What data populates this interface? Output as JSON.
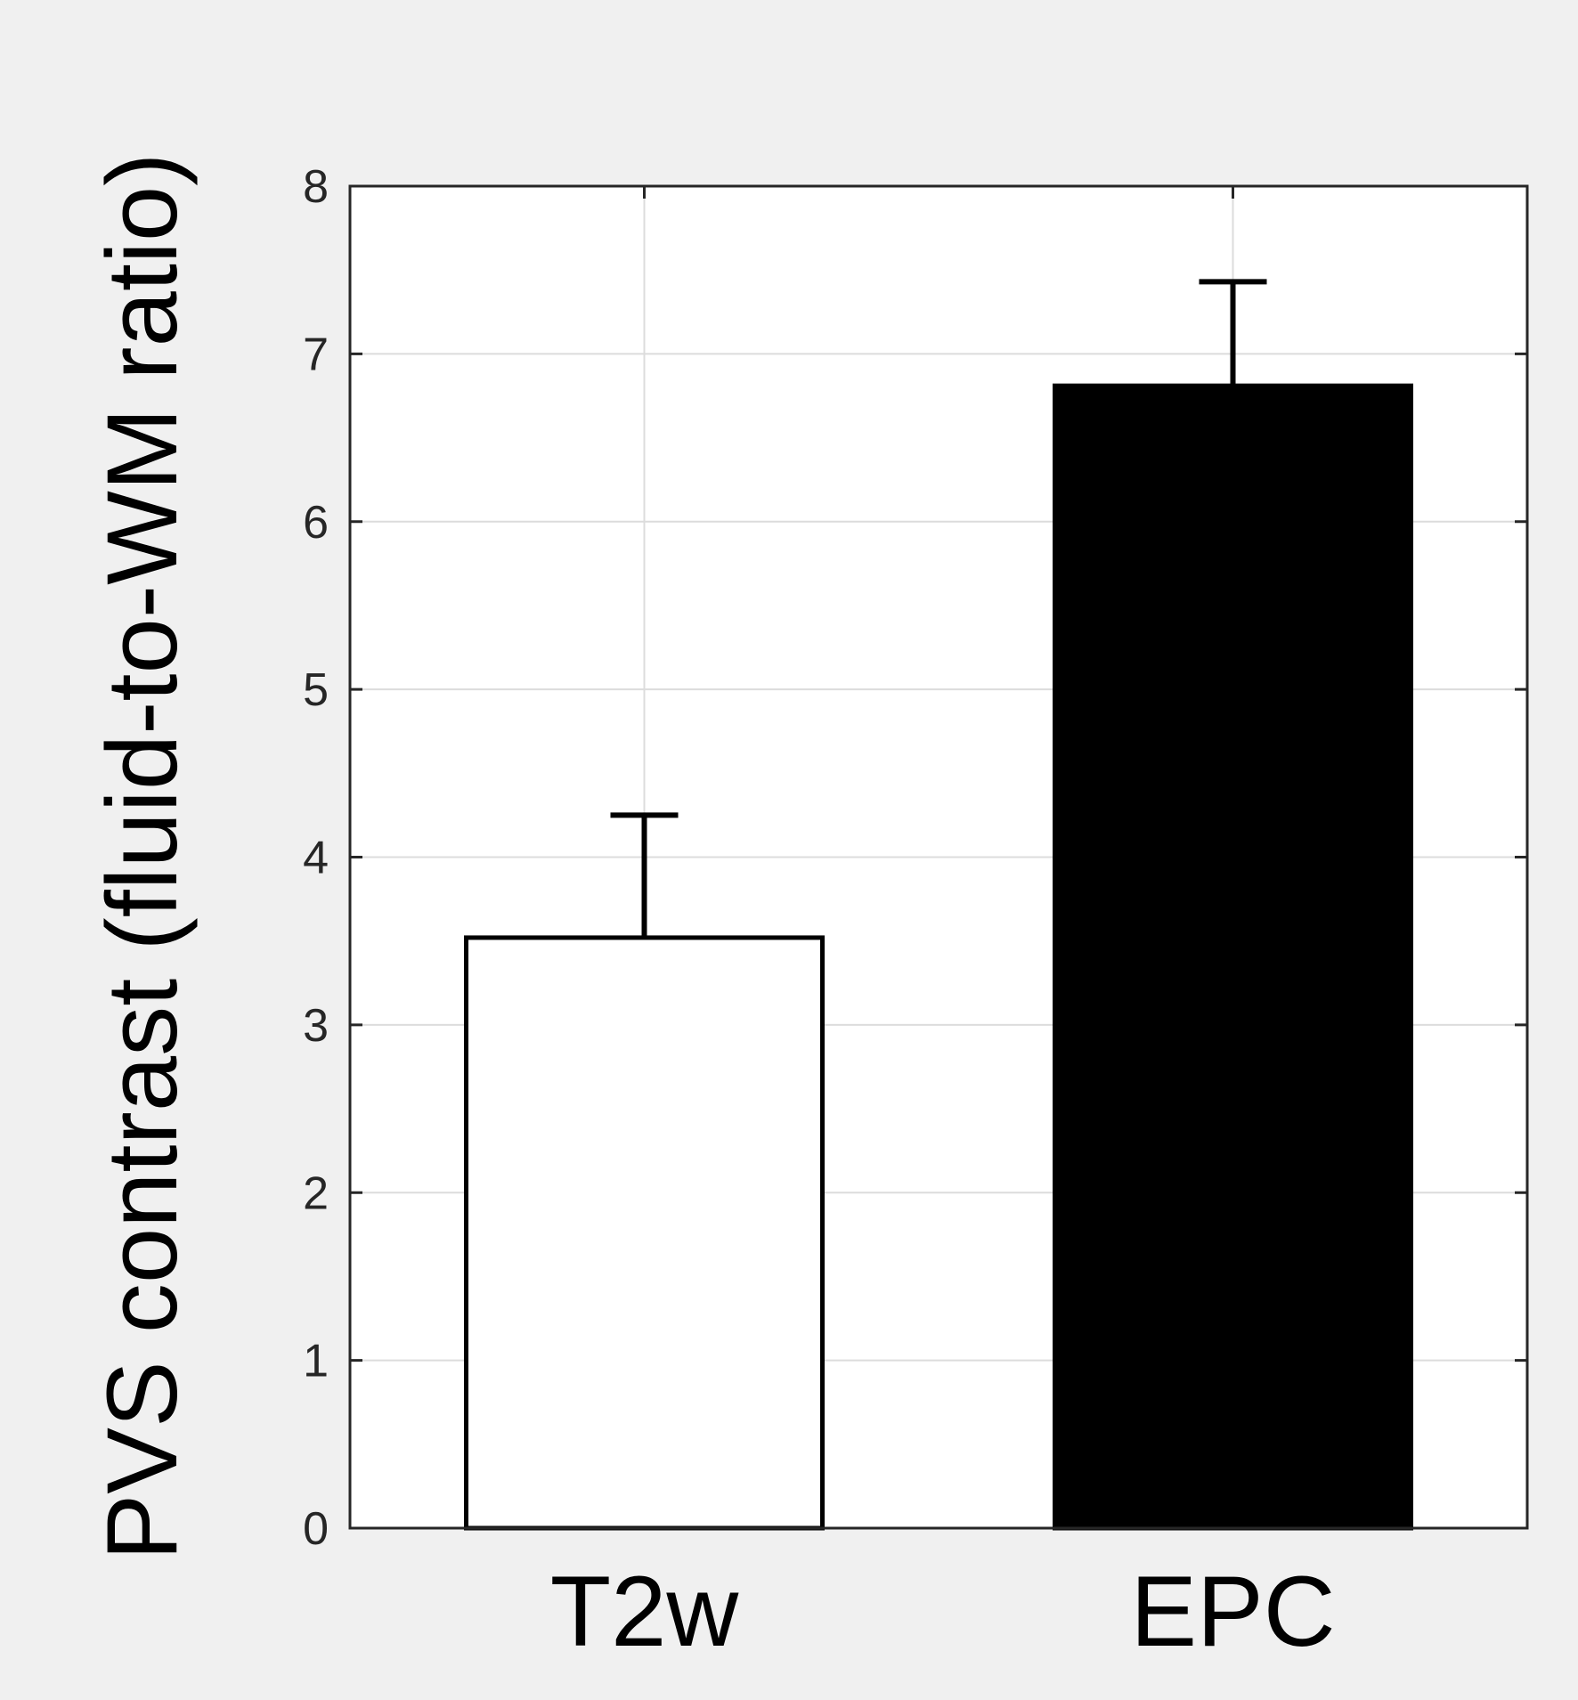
{
  "chart_data": {
    "type": "bar",
    "title": "",
    "xlabel": "",
    "ylabel": "PVS contrast (fluid-to-WM ratio)",
    "categories": [
      "T2w",
      "EPC"
    ],
    "values": [
      3.52,
      6.81
    ],
    "error_upper": [
      0.73,
      0.62
    ],
    "ylim": [
      0,
      8
    ],
    "yticks": [
      0,
      1,
      2,
      3,
      4,
      5,
      6,
      7,
      8
    ],
    "grid": true,
    "bar_colors": [
      "#ffffff",
      "#000000"
    ],
    "bar_edge_color": "#000000",
    "error_bar_color": "#000000",
    "grid_color": "#dcdcdc",
    "axes_color": "#262626",
    "background_color": "#f0f0f0",
    "plot_background_color": "#ffffff"
  }
}
